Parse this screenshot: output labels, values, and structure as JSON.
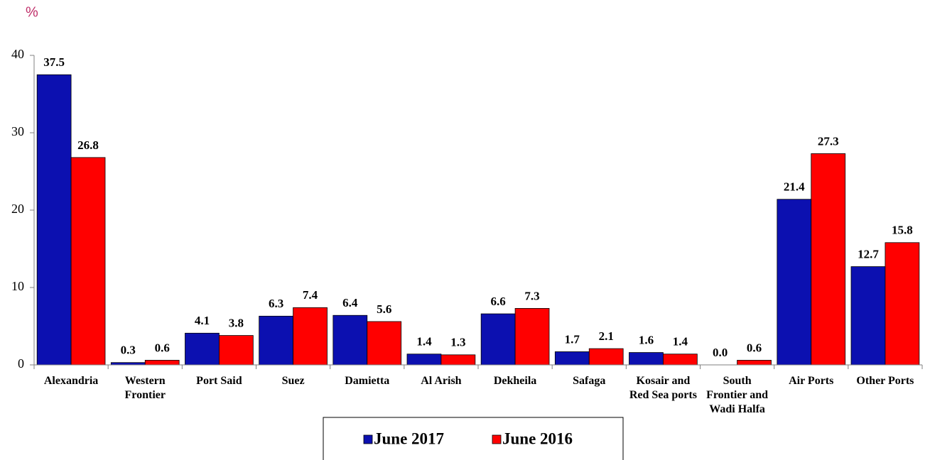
{
  "chart_data": {
    "type": "bar",
    "y_axis_label": "%",
    "categories": [
      "Alexandria",
      "Western Frontier",
      "Port Said",
      "Suez",
      "Damietta",
      "Al Arish",
      "Dekheila",
      "Safaga",
      "Kosair and Red Sea ports",
      "South Frontier and Wadi Halfa",
      "Air Ports",
      "Other Ports"
    ],
    "series": [
      {
        "name": "June 2017",
        "color": "#0c10b0",
        "values": [
          37.5,
          0.3,
          4.1,
          6.3,
          6.4,
          1.4,
          6.6,
          1.7,
          1.6,
          0,
          21.4,
          12.7
        ],
        "value_labels": [
          "37.5",
          "0.3",
          "4.1",
          "6.3",
          "6.4",
          "1.4",
          "6.6",
          "1.7",
          "1.6",
          "0.0",
          "21.4",
          "12.7"
        ]
      },
      {
        "name": "June 2016",
        "color": "#ff0000",
        "values": [
          26.8,
          0.6,
          3.8,
          7.4,
          5.6,
          1.3,
          7.3,
          2.1,
          1.4,
          0.6,
          27.3,
          15.8
        ],
        "value_labels": [
          "26.8",
          "0.6",
          "3.8",
          "7.4",
          "5.6",
          "1.3",
          "7.3",
          "2.1",
          "1.4",
          "0.6",
          "27.3",
          "15.8"
        ]
      }
    ],
    "ylim": [
      0,
      40
    ],
    "yticks": [
      0,
      10,
      20,
      30,
      40
    ],
    "grid": false,
    "legend": "bottom"
  }
}
